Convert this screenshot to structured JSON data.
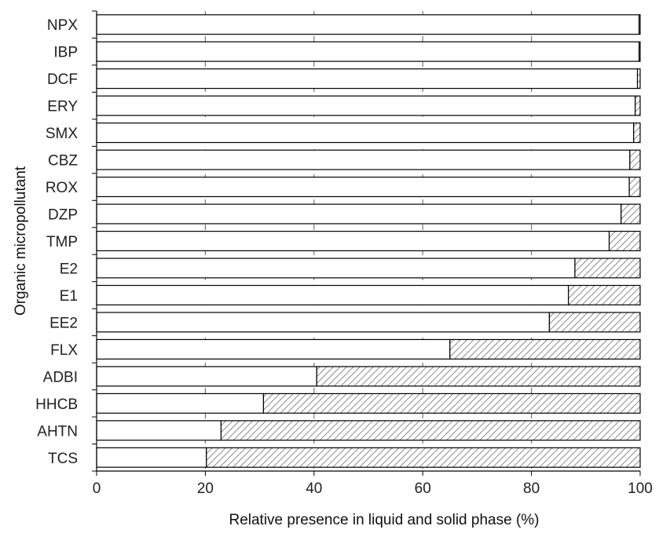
{
  "chart_data": {
    "type": "bar",
    "orientation": "horizontal",
    "stacked": true,
    "xlabel": "Relative presence in liquid and solid phase (%)",
    "ylabel": "Organic micropollutant",
    "xlim": [
      0,
      100
    ],
    "xticks": [
      "0",
      "20",
      "40",
      "60",
      "80",
      "100"
    ],
    "grid": "vertical dashed",
    "legend": "none",
    "categories": [
      "NPX",
      "IBP",
      "DCF",
      "ERY",
      "SMX",
      "CBZ",
      "ROX",
      "DZP",
      "TMP",
      "E2",
      "E1",
      "EE2",
      "FLX",
      "ADBI",
      "HHCB",
      "AHTN",
      "TCS"
    ],
    "series": [
      {
        "fill": "white",
        "values": [
          99.8,
          99.8,
          99.5,
          99.1,
          98.8,
          98.1,
          98.0,
          96.5,
          94.3,
          88.0,
          86.8,
          83.3,
          65.0,
          40.5,
          30.7,
          22.9,
          20.2
        ]
      },
      {
        "fill": "hatched",
        "values": [
          0.2,
          0.2,
          0.5,
          0.9,
          1.2,
          1.9,
          2.0,
          3.5,
          5.7,
          12.0,
          13.2,
          16.7,
          35.0,
          59.5,
          69.3,
          77.1,
          79.8
        ]
      }
    ],
    "colors": {
      "bar_stroke": "#000000",
      "hatch": "#8c8c8c",
      "grid": "#777777",
      "liquid_fill": "#ffffff"
    }
  }
}
